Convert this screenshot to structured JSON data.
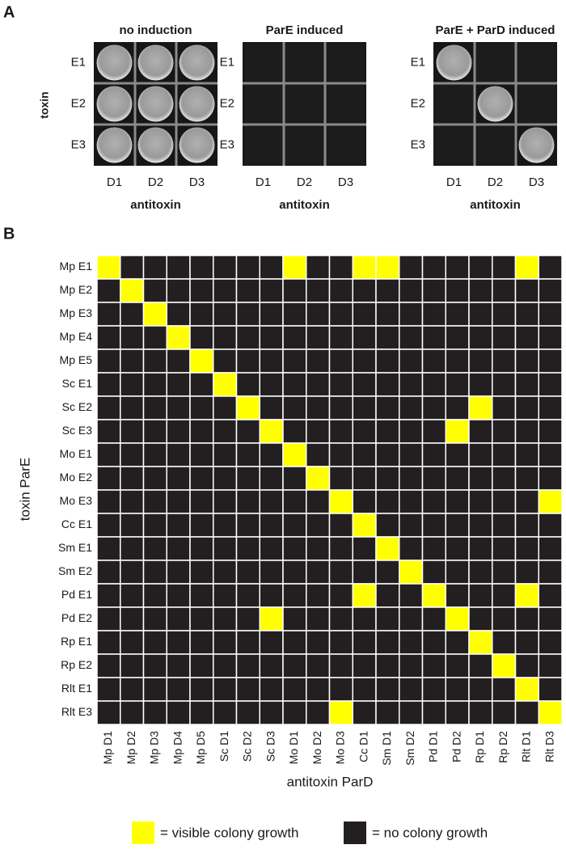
{
  "panel_a": {
    "label": "A",
    "y_label": "toxin",
    "plates": [
      {
        "title": "no induction",
        "x_label": "antitoxin",
        "rows": [
          "E1",
          "E2",
          "E3"
        ],
        "cols": [
          "D1",
          "D2",
          "D3"
        ],
        "growth": [
          [
            1,
            1,
            1
          ],
          [
            1,
            1,
            1
          ],
          [
            1,
            1,
            1
          ]
        ]
      },
      {
        "title": "ParE induced",
        "x_label": "antitoxin",
        "rows": [
          "E1",
          "E2",
          "E3"
        ],
        "cols": [
          "D1",
          "D2",
          "D3"
        ],
        "growth": [
          [
            0,
            0,
            0
          ],
          [
            0,
            0,
            0
          ],
          [
            0,
            0,
            0
          ]
        ]
      },
      {
        "title": "ParE + ParD induced",
        "x_label": "antitoxin",
        "rows": [
          "E1",
          "E2",
          "E3"
        ],
        "cols": [
          "D1",
          "D2",
          "D3"
        ],
        "growth": [
          [
            1,
            0,
            0
          ],
          [
            0,
            1,
            0
          ],
          [
            0,
            0,
            1
          ]
        ]
      }
    ]
  },
  "panel_b": {
    "label": "B",
    "y_label": "toxin ParE",
    "x_label": "antitoxin ParD",
    "rows": [
      "Mp E1",
      "Mp E2",
      "Mp E3",
      "Mp E4",
      "Mp E5",
      "Sc E1",
      "Sc E2",
      "Sc E3",
      "Mo E1",
      "Mo E2",
      "Mo E3",
      "Cc E1",
      "Sm E1",
      "Sm E2",
      "Pd E1",
      "Pd E2",
      "Rp E1",
      "Rp E2",
      "Rlt E1",
      "Rlt E3"
    ],
    "cols": [
      "Mp D1",
      "Mp D2",
      "Mp D3",
      "Mp D4",
      "Mp D5",
      "Sc D1",
      "Sc D2",
      "Sc D3",
      "Mo D1",
      "Mo D2",
      "Mo D3",
      "Cc D1",
      "Sm D1",
      "Sm D2",
      "Pd D1",
      "Pd D2",
      "Rp D1",
      "Rp D2",
      "Rlt D1",
      "Rlt D3"
    ],
    "growth": [
      [
        1,
        0,
        0,
        0,
        0,
        0,
        0,
        0,
        1,
        0,
        0,
        1,
        1,
        0,
        0,
        0,
        0,
        0,
        1,
        0
      ],
      [
        0,
        1,
        0,
        0,
        0,
        0,
        0,
        0,
        0,
        0,
        0,
        0,
        0,
        0,
        0,
        0,
        0,
        0,
        0,
        0
      ],
      [
        0,
        0,
        1,
        0,
        0,
        0,
        0,
        0,
        0,
        0,
        0,
        0,
        0,
        0,
        0,
        0,
        0,
        0,
        0,
        0
      ],
      [
        0,
        0,
        0,
        1,
        0,
        0,
        0,
        0,
        0,
        0,
        0,
        0,
        0,
        0,
        0,
        0,
        0,
        0,
        0,
        0
      ],
      [
        0,
        0,
        0,
        0,
        1,
        0,
        0,
        0,
        0,
        0,
        0,
        0,
        0,
        0,
        0,
        0,
        0,
        0,
        0,
        0
      ],
      [
        0,
        0,
        0,
        0,
        0,
        1,
        0,
        0,
        0,
        0,
        0,
        0,
        0,
        0,
        0,
        0,
        0,
        0,
        0,
        0
      ],
      [
        0,
        0,
        0,
        0,
        0,
        0,
        1,
        0,
        0,
        0,
        0,
        0,
        0,
        0,
        0,
        0,
        1,
        0,
        0,
        0
      ],
      [
        0,
        0,
        0,
        0,
        0,
        0,
        0,
        1,
        0,
        0,
        0,
        0,
        0,
        0,
        0,
        1,
        0,
        0,
        0,
        0
      ],
      [
        0,
        0,
        0,
        0,
        0,
        0,
        0,
        0,
        1,
        0,
        0,
        0,
        0,
        0,
        0,
        0,
        0,
        0,
        0,
        0
      ],
      [
        0,
        0,
        0,
        0,
        0,
        0,
        0,
        0,
        0,
        1,
        0,
        0,
        0,
        0,
        0,
        0,
        0,
        0,
        0,
        0
      ],
      [
        0,
        0,
        0,
        0,
        0,
        0,
        0,
        0,
        0,
        0,
        1,
        0,
        0,
        0,
        0,
        0,
        0,
        0,
        0,
        1
      ],
      [
        0,
        0,
        0,
        0,
        0,
        0,
        0,
        0,
        0,
        0,
        0,
        1,
        0,
        0,
        0,
        0,
        0,
        0,
        0,
        0
      ],
      [
        0,
        0,
        0,
        0,
        0,
        0,
        0,
        0,
        0,
        0,
        0,
        0,
        1,
        0,
        0,
        0,
        0,
        0,
        0,
        0
      ],
      [
        0,
        0,
        0,
        0,
        0,
        0,
        0,
        0,
        0,
        0,
        0,
        0,
        0,
        1,
        0,
        0,
        0,
        0,
        0,
        0
      ],
      [
        0,
        0,
        0,
        0,
        0,
        0,
        0,
        0,
        0,
        0,
        0,
        1,
        0,
        0,
        1,
        0,
        0,
        0,
        1,
        0
      ],
      [
        0,
        0,
        0,
        0,
        0,
        0,
        0,
        1,
        0,
        0,
        0,
        0,
        0,
        0,
        0,
        1,
        0,
        0,
        0,
        0
      ],
      [
        0,
        0,
        0,
        0,
        0,
        0,
        0,
        0,
        0,
        0,
        0,
        0,
        0,
        0,
        0,
        0,
        1,
        0,
        0,
        0
      ],
      [
        0,
        0,
        0,
        0,
        0,
        0,
        0,
        0,
        0,
        0,
        0,
        0,
        0,
        0,
        0,
        0,
        0,
        1,
        0,
        0
      ],
      [
        0,
        0,
        0,
        0,
        0,
        0,
        0,
        0,
        0,
        0,
        0,
        0,
        0,
        0,
        0,
        0,
        0,
        0,
        1,
        0
      ],
      [
        0,
        0,
        0,
        0,
        0,
        0,
        0,
        0,
        0,
        0,
        1,
        0,
        0,
        0,
        0,
        0,
        0,
        0,
        0,
        1
      ]
    ],
    "growth_color": "#ffff00",
    "no_growth_color": "#231f20",
    "legend": {
      "growth": "= visible colony growth",
      "no_growth": "= no colony growth"
    }
  }
}
